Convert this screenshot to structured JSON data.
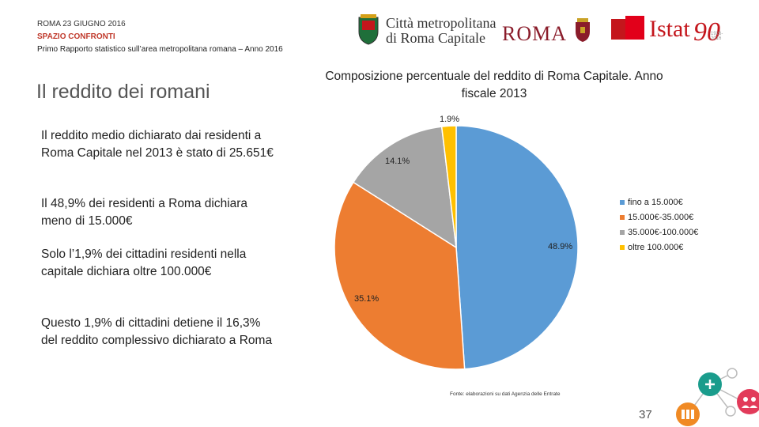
{
  "header": {
    "line1": "ROMA 23 GIUGNO 2016",
    "line2": "SPAZIO CONFRONTI",
    "line3": "Primo Rapporto  statistico sull’area metropolitana romana – Anno 2016"
  },
  "logos": {
    "cm_line1": "Città metropolitana",
    "cm_line2": "di Roma Capitale",
    "roma": "ROMA",
    "istat": "Istat",
    "istat_ninety": "90",
    "istat_years": "1926-2016"
  },
  "left": {
    "title": "Il reddito dei romani",
    "paragraphs": [
      "Il reddito medio dichiarato dai residenti a Roma Capitale nel 2013 è stato di 25.651€",
      "Il 48,9% dei residenti a Roma dichiara meno di 15.000€",
      "Solo l’1,9% dei cittadini residenti nella capitale dichiara oltre 100.000€",
      "Questo 1,9% di cittadini detiene il 16,3% del reddito complessivo dichiarato a Roma"
    ]
  },
  "chart_data": {
    "type": "pie",
    "title": "Composizione percentuale del reddito di Roma Capitale. Anno fiscale 2013",
    "categories": [
      "fino a 15.000€",
      "15.000€-35.000€",
      "35.000€-100.000€",
      "oltre 100.000€"
    ],
    "values": [
      48.9,
      35.1,
      14.1,
      1.9
    ],
    "labels": [
      "48.9%",
      "35.1%",
      "14.1%",
      "1.9%"
    ],
    "colors": [
      "#5b9bd5",
      "#ed7d31",
      "#a5a5a5",
      "#ffc000"
    ],
    "legend": "right"
  },
  "source": "Fonte: elaborazioni su dati Agenzia delle Entrate",
  "page_number": "37",
  "colors": {
    "accent_red": "#c4161c",
    "header_red": "#c0392b"
  }
}
